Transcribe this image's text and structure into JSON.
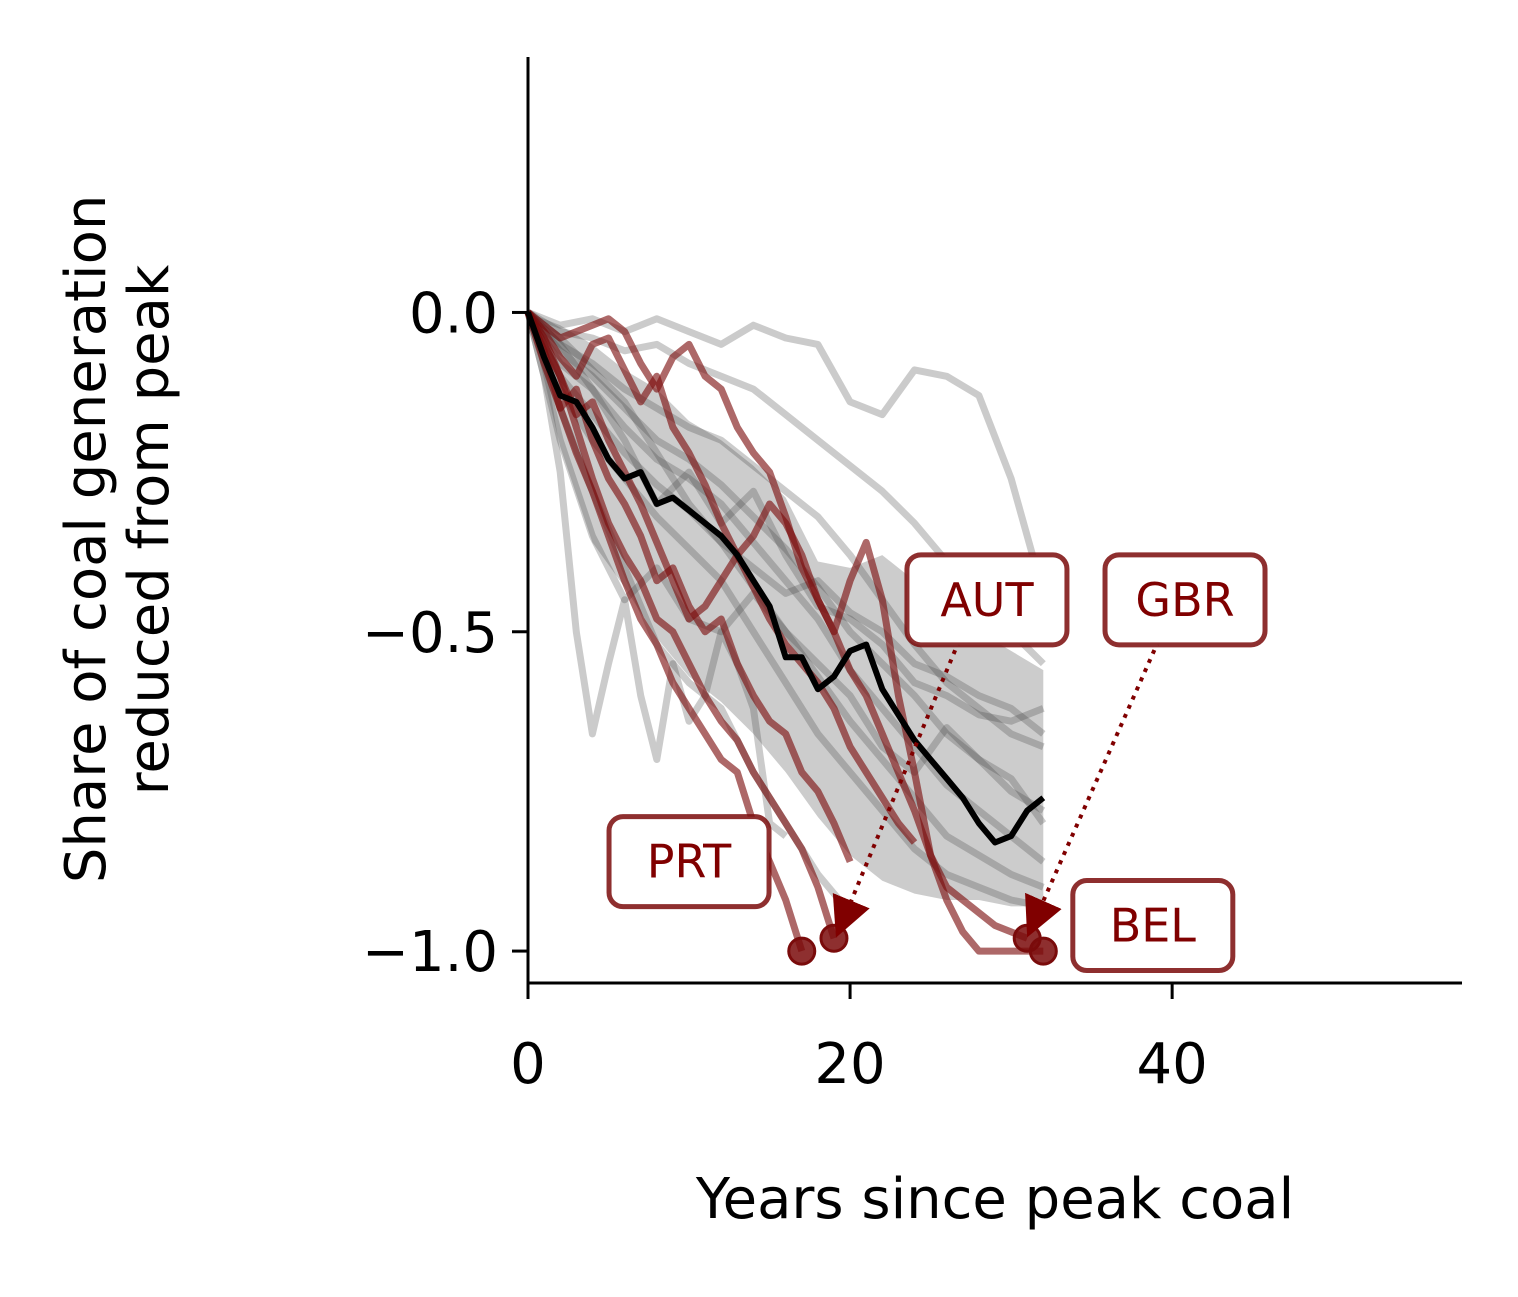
{
  "chart_data": {
    "type": "line",
    "title": "",
    "xlabel": "Years since peak coal",
    "ylabel_lines": [
      "Share of coal generation",
      "reduced from peak"
    ],
    "xlim": [
      0,
      58
    ],
    "ylim": [
      -1.05,
      0.4
    ],
    "xticks": [
      0,
      20,
      40
    ],
    "xtick_labels": [
      "0",
      "20",
      "40"
    ],
    "yticks": [
      0.0,
      -0.5,
      -1.0
    ],
    "ytick_labels": [
      "0.0",
      "−0.5",
      "−1.0"
    ],
    "grid": false,
    "colors": {
      "highlight": "#7a0b0b",
      "background_lines": "#444444",
      "median": "#000000",
      "band": "#555555",
      "annotation_text": "#800000"
    },
    "median": {
      "x": [
        0,
        1,
        2,
        3,
        4,
        5,
        6,
        7,
        8,
        9,
        10,
        11,
        12,
        13,
        14,
        15,
        16,
        17,
        18,
        19,
        20,
        21,
        22,
        23,
        24,
        25,
        26,
        27,
        28,
        29,
        30,
        31,
        32
      ],
      "y": [
        0,
        -0.07,
        -0.13,
        -0.14,
        -0.18,
        -0.23,
        -0.26,
        -0.25,
        -0.3,
        -0.29,
        -0.31,
        -0.33,
        -0.35,
        -0.38,
        -0.42,
        -0.46,
        -0.54,
        -0.54,
        -0.59,
        -0.57,
        -0.53,
        -0.52,
        -0.59,
        -0.63,
        -0.67,
        -0.7,
        -0.73,
        -0.76,
        -0.8,
        -0.83,
        -0.82,
        -0.78,
        -0.76
      ]
    },
    "band": {
      "x": [
        0,
        2,
        4,
        6,
        8,
        10,
        12,
        14,
        16,
        18,
        20,
        22,
        24,
        26,
        28,
        30,
        32
      ],
      "upper": [
        0,
        -0.02,
        -0.05,
        -0.09,
        -0.12,
        -0.17,
        -0.2,
        -0.24,
        -0.29,
        -0.39,
        -0.4,
        -0.38,
        -0.42,
        -0.46,
        -0.5,
        -0.53,
        -0.56
      ],
      "lower": [
        0,
        -0.21,
        -0.36,
        -0.43,
        -0.51,
        -0.57,
        -0.61,
        -0.66,
        -0.72,
        -0.79,
        -0.85,
        -0.89,
        -0.91,
        -0.92,
        -0.92,
        -0.93,
        -0.93
      ]
    },
    "background_series": [
      {
        "x": [
          0,
          2,
          4,
          6,
          8,
          10,
          12,
          14,
          16,
          18,
          20,
          22,
          24,
          26,
          28,
          30,
          32
        ],
        "y": [
          0,
          -0.02,
          -0.01,
          -0.03,
          -0.01,
          -0.03,
          -0.05,
          -0.02,
          -0.04,
          -0.05,
          -0.14,
          -0.16,
          -0.09,
          -0.1,
          -0.13,
          -0.26,
          -0.44
        ]
      },
      {
        "x": [
          0,
          2,
          4,
          6,
          8,
          10,
          12,
          14,
          16,
          18,
          20,
          22,
          24,
          26,
          28,
          30,
          32
        ],
        "y": [
          0,
          -0.03,
          -0.04,
          -0.06,
          -0.05,
          -0.08,
          -0.1,
          -0.12,
          -0.16,
          -0.2,
          -0.24,
          -0.28,
          -0.33,
          -0.39,
          -0.45,
          -0.5,
          -0.55
        ]
      },
      {
        "x": [
          0,
          2,
          4,
          6,
          8,
          10,
          12,
          14,
          16,
          18,
          20,
          22,
          24,
          26,
          28,
          30,
          32
        ],
        "y": [
          0,
          -0.05,
          -0.08,
          -0.12,
          -0.15,
          -0.18,
          -0.2,
          -0.24,
          -0.28,
          -0.32,
          -0.38,
          -0.45,
          -0.52,
          -0.58,
          -0.62,
          -0.66,
          -0.68
        ]
      },
      {
        "x": [
          0,
          2,
          4,
          6,
          8,
          10,
          12,
          14,
          16,
          18,
          20,
          22,
          24,
          26,
          28,
          30,
          32
        ],
        "y": [
          0,
          -0.06,
          -0.1,
          -0.15,
          -0.2,
          -0.23,
          -0.27,
          -0.32,
          -0.37,
          -0.43,
          -0.5,
          -0.55,
          -0.6,
          -0.66,
          -0.7,
          -0.73,
          -0.8
        ]
      },
      {
        "x": [
          0,
          2,
          4,
          6,
          8,
          10,
          12,
          14,
          16,
          18,
          20,
          22,
          24,
          26,
          28,
          30,
          32
        ],
        "y": [
          0,
          -0.08,
          -0.12,
          -0.18,
          -0.23,
          -0.26,
          -0.3,
          -0.36,
          -0.42,
          -0.48,
          -0.56,
          -0.62,
          -0.68,
          -0.74,
          -0.78,
          -0.82,
          -0.86
        ]
      },
      {
        "x": [
          0,
          2,
          4,
          6,
          8,
          10,
          12,
          14,
          16,
          18,
          20,
          22,
          24,
          26,
          28,
          30,
          32
        ],
        "y": [
          0,
          -0.1,
          -0.16,
          -0.22,
          -0.27,
          -0.31,
          -0.36,
          -0.43,
          -0.5,
          -0.57,
          -0.64,
          -0.7,
          -0.76,
          -0.82,
          -0.85,
          -0.88,
          -0.9
        ]
      },
      {
        "x": [
          0,
          2,
          4,
          6,
          8,
          10,
          12,
          14,
          16,
          18,
          20,
          22,
          24,
          26,
          28,
          30,
          32
        ],
        "y": [
          0,
          -0.12,
          -0.2,
          -0.26,
          -0.32,
          -0.37,
          -0.42,
          -0.5,
          -0.58,
          -0.66,
          -0.72,
          -0.78,
          -0.84,
          -0.88,
          -0.9,
          -0.92,
          -0.93
        ]
      },
      {
        "x": [
          0,
          2,
          4,
          6,
          8,
          10,
          12,
          14,
          16,
          18,
          20
        ],
        "y": [
          0,
          -0.15,
          -0.28,
          -0.4,
          -0.52,
          -0.58,
          -0.62,
          -0.72,
          -0.8,
          -0.88,
          -0.94
        ]
      },
      {
        "x": [
          0,
          1,
          2,
          3,
          4,
          5,
          6,
          7,
          8,
          9,
          10,
          11,
          12,
          13,
          14,
          15,
          16
        ],
        "y": [
          0,
          -0.1,
          -0.25,
          -0.5,
          -0.66,
          -0.55,
          -0.45,
          -0.6,
          -0.7,
          -0.55,
          -0.64,
          -0.6,
          -0.5,
          -0.55,
          -0.62,
          -0.8,
          -0.82
        ]
      },
      {
        "x": [
          0,
          2,
          4,
          6,
          8,
          10,
          12,
          14,
          16,
          18,
          20,
          22,
          24,
          26,
          28,
          30,
          32
        ],
        "y": [
          0,
          -0.2,
          -0.35,
          -0.45,
          -0.4,
          -0.48,
          -0.5,
          -0.44,
          -0.5,
          -0.55,
          -0.6,
          -0.68,
          -0.72,
          -0.65,
          -0.7,
          -0.75,
          -0.78
        ]
      },
      {
        "x": [
          0,
          2,
          4,
          6,
          8,
          10,
          12,
          14,
          16,
          18,
          20,
          22,
          24,
          26,
          28,
          30,
          32
        ],
        "y": [
          0,
          -0.05,
          -0.12,
          -0.2,
          -0.3,
          -0.25,
          -0.33,
          -0.28,
          -0.38,
          -0.46,
          -0.48,
          -0.52,
          -0.58,
          -0.6,
          -0.63,
          -0.64,
          -0.62
        ]
      },
      {
        "x": [
          0,
          2,
          4,
          6,
          8,
          10,
          12,
          14,
          16,
          18,
          20,
          22,
          24,
          26,
          28,
          30,
          32
        ],
        "y": [
          0,
          -0.04,
          -0.09,
          -0.14,
          -0.22,
          -0.3,
          -0.36,
          -0.4,
          -0.44,
          -0.42,
          -0.47,
          -0.5,
          -0.55,
          -0.57,
          -0.6,
          -0.62,
          -0.66
        ]
      }
    ],
    "highlight_series": [
      {
        "name": "PRT",
        "x": [
          0,
          1,
          2,
          3,
          4,
          5,
          6,
          7,
          8,
          9,
          10,
          11,
          12,
          13,
          14,
          15,
          16,
          17
        ],
        "y": [
          0,
          -0.06,
          -0.15,
          -0.22,
          -0.28,
          -0.35,
          -0.42,
          -0.48,
          -0.52,
          -0.58,
          -0.62,
          -0.66,
          -0.7,
          -0.72,
          -0.8,
          -0.86,
          -0.92,
          -1.0
        ]
      },
      {
        "name": "AUT",
        "x": [
          0,
          1,
          2,
          3,
          4,
          5,
          6,
          7,
          8,
          9,
          10,
          11,
          12,
          13,
          14,
          15,
          16,
          17,
          18,
          19
        ],
        "y": [
          0,
          -0.04,
          -0.1,
          -0.18,
          -0.26,
          -0.33,
          -0.38,
          -0.42,
          -0.48,
          -0.5,
          -0.55,
          -0.6,
          -0.64,
          -0.67,
          -0.72,
          -0.76,
          -0.8,
          -0.84,
          -0.9,
          -0.98
        ]
      },
      {
        "name": "GBR",
        "x": [
          0,
          1,
          2,
          3,
          4,
          5,
          6,
          7,
          8,
          9,
          10,
          11,
          12,
          13,
          14,
          15,
          16,
          17,
          18,
          19,
          20,
          21,
          22,
          23,
          24,
          25,
          26,
          27,
          28,
          29,
          30,
          31
        ],
        "y": [
          0,
          -0.02,
          -0.04,
          -0.03,
          -0.02,
          -0.01,
          -0.03,
          -0.08,
          -0.12,
          -0.07,
          -0.05,
          -0.1,
          -0.12,
          -0.18,
          -0.22,
          -0.25,
          -0.32,
          -0.4,
          -0.45,
          -0.5,
          -0.56,
          -0.6,
          -0.66,
          -0.72,
          -0.78,
          -0.85,
          -0.9,
          -0.92,
          -0.94,
          -0.96,
          -0.97,
          -0.98
        ]
      },
      {
        "name": "BEL",
        "x": [
          0,
          1,
          2,
          3,
          4,
          5,
          6,
          7,
          8,
          9,
          10,
          11,
          12,
          13,
          14,
          15,
          16,
          17,
          18,
          19,
          20,
          21,
          22,
          23,
          24,
          25,
          26,
          27,
          28,
          29,
          30,
          31,
          32
        ],
        "y": [
          0,
          -0.05,
          -0.1,
          -0.16,
          -0.14,
          -0.2,
          -0.25,
          -0.3,
          -0.36,
          -0.42,
          -0.48,
          -0.46,
          -0.42,
          -0.38,
          -0.35,
          -0.3,
          -0.33,
          -0.38,
          -0.45,
          -0.5,
          -0.42,
          -0.36,
          -0.45,
          -0.6,
          -0.72,
          -0.85,
          -0.92,
          -0.97,
          -1.0,
          -1.0,
          -1.0,
          -1.0,
          -1.0
        ]
      },
      {
        "name": "",
        "x": [
          0,
          1,
          2,
          3,
          4,
          5,
          6,
          7,
          8,
          9,
          10,
          11,
          12,
          13,
          14,
          15,
          16,
          17,
          18,
          19,
          20
        ],
        "y": [
          0,
          -0.08,
          -0.15,
          -0.12,
          -0.2,
          -0.26,
          -0.3,
          -0.35,
          -0.42,
          -0.4,
          -0.46,
          -0.5,
          -0.48,
          -0.55,
          -0.6,
          -0.64,
          -0.66,
          -0.72,
          -0.75,
          -0.8,
          -0.86
        ]
      },
      {
        "name": "",
        "x": [
          0,
          1,
          2,
          3,
          4,
          5,
          6,
          7,
          8,
          9,
          10,
          11,
          12,
          13,
          14,
          15,
          16,
          17,
          18,
          19,
          20,
          21,
          22,
          23,
          24
        ],
        "y": [
          0,
          -0.03,
          -0.07,
          -0.1,
          -0.05,
          -0.04,
          -0.09,
          -0.14,
          -0.1,
          -0.18,
          -0.22,
          -0.27,
          -0.33,
          -0.38,
          -0.43,
          -0.48,
          -0.52,
          -0.55,
          -0.58,
          -0.62,
          -0.68,
          -0.72,
          -0.76,
          -0.8,
          -0.83
        ]
      }
    ],
    "endpoints": [
      {
        "x": 17,
        "y": -1.0
      },
      {
        "x": 19,
        "y": -0.98
      },
      {
        "x": 31,
        "y": -0.98
      },
      {
        "x": 32,
        "y": -1.0
      }
    ],
    "annotations": [
      {
        "text": "PRT",
        "box_x": 10,
        "box_y": -0.86,
        "arrow": false
      },
      {
        "text": "AUT",
        "box_x": 28.5,
        "box_y": -0.45,
        "arrow": true,
        "tip_x": 19.6,
        "tip_y": -0.95,
        "tail_x": 27,
        "tail_y": -0.5
      },
      {
        "text": "GBR",
        "box_x": 40.8,
        "box_y": -0.45,
        "arrow": true,
        "tip_x": 31.5,
        "tip_y": -0.95,
        "tail_x": 39.4,
        "tail_y": -0.5
      },
      {
        "text": "BEL",
        "box_x": 38.8,
        "box_y": -0.96,
        "arrow": false
      }
    ]
  }
}
